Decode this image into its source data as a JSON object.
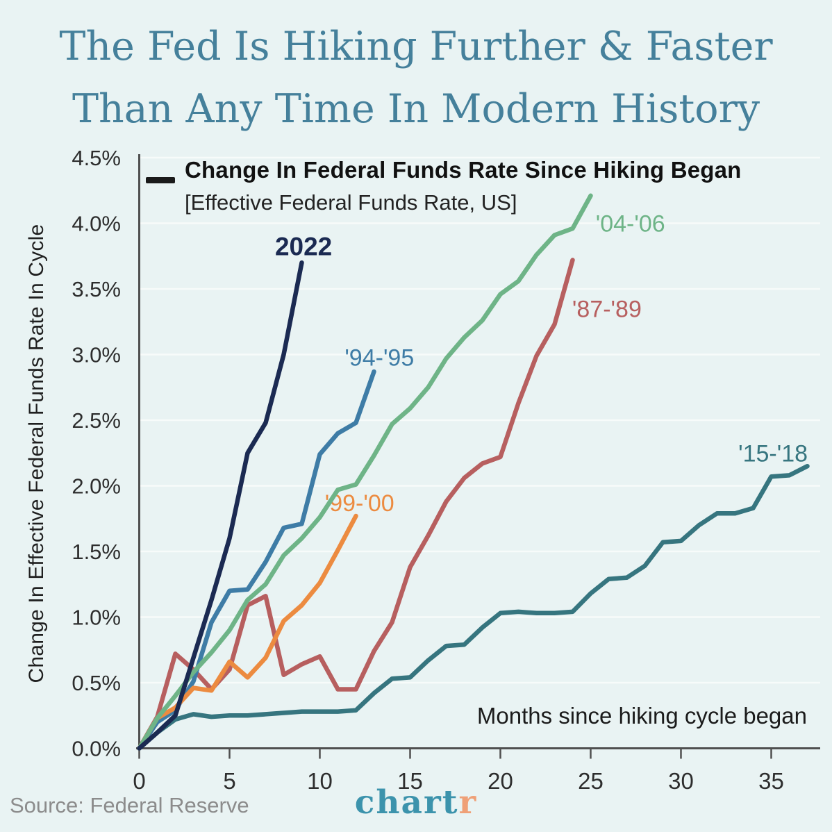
{
  "title": {
    "line1": "The Fed Is Hiking Further & Faster",
    "line2": "Than Any Time In Modern History",
    "color": "#45809b"
  },
  "legend": {
    "swatch_color": "#1a1a1a",
    "label": "Change In Federal Funds Rate Since Hiking Began",
    "sublabel": "[Effective Federal Funds Rate, US]"
  },
  "footer": {
    "source": "Source: Federal Reserve",
    "logo_main": "chart",
    "logo_accent": "r",
    "logo_main_color": "#3c93ac",
    "logo_accent_color": "#efa077",
    "source_color": "#8c8c8c"
  },
  "chart_data": {
    "type": "line",
    "title": "Change In Federal Funds Rate Since Hiking Began",
    "subtitle": "[Effective Federal Funds Rate, US]",
    "xlabel": "Months since hiking cycle began",
    "ylabel": "Change In Effective Federal Funds Rate In Cycle",
    "x_unit": "months since hiking cycle began",
    "y_unit": "percentage points",
    "xlim": [
      0,
      37.7
    ],
    "ylim": [
      0,
      4.5
    ],
    "x_ticks": [
      0,
      5,
      10,
      15,
      20,
      25,
      30,
      35
    ],
    "y_ticks": [
      0,
      0.5,
      1.0,
      1.5,
      2.0,
      2.5,
      3.0,
      3.5,
      4.0,
      4.5
    ],
    "y_tick_labels": [
      "0.0%",
      "0.5%",
      "1.0%",
      "1.5%",
      "2.0%",
      "2.5%",
      "3.0%",
      "3.5%",
      "4.0%",
      "4.5%"
    ],
    "grid": "horizontal",
    "legend_position": "top-left",
    "axis_color": "#4f4f4f",
    "grid_color": "#f7fbfa",
    "tick_label_color": "#2d2d2d",
    "series": [
      {
        "id": "87-89",
        "name": "'87-'89",
        "color": "#b75f5f",
        "label_x": 25.9,
        "label_y": 3.35,
        "label_bold": false,
        "values": [
          0,
          0.24,
          0.72,
          0.6,
          0.45,
          0.6,
          1.09,
          1.16,
          0.56,
          0.64,
          0.7,
          0.45,
          0.45,
          0.74,
          0.96,
          1.38,
          1.62,
          1.88,
          2.06,
          2.17,
          2.22,
          2.63,
          2.99,
          3.23,
          3.72
        ]
      },
      {
        "id": "94-95",
        "name": "'94-'95",
        "color": "#3e7ca6",
        "label_x": 13.3,
        "label_y": 2.98,
        "label_bold": false,
        "values": [
          0,
          0.2,
          0.29,
          0.51,
          0.96,
          1.2,
          1.21,
          1.42,
          1.68,
          1.71,
          2.24,
          2.4,
          2.48,
          2.87
        ]
      },
      {
        "id": "99-00",
        "name": "'99-'00",
        "color": "#ec8b40",
        "label_x": 12.2,
        "label_y": 1.87,
        "label_bold": false,
        "values": [
          0,
          0.23,
          0.31,
          0.46,
          0.44,
          0.66,
          0.54,
          0.69,
          0.97,
          1.09,
          1.26,
          1.51,
          1.77
        ]
      },
      {
        "id": "04-06",
        "name": "'04-'06",
        "color": "#6eb487",
        "label_x": 27.2,
        "label_y": 4.0,
        "label_bold": false,
        "values": [
          0,
          0.23,
          0.4,
          0.58,
          0.73,
          0.9,
          1.13,
          1.25,
          1.47,
          1.6,
          1.76,
          1.97,
          2.01,
          2.23,
          2.47,
          2.59,
          2.75,
          2.97,
          3.13,
          3.26,
          3.46,
          3.56,
          3.76,
          3.91,
          3.96,
          4.21
        ]
      },
      {
        "id": "15-18",
        "name": "'15-'18",
        "color": "#36757f",
        "label_x": 35.1,
        "label_y": 2.25,
        "label_bold": false,
        "values": [
          0,
          0.12,
          0.22,
          0.26,
          0.24,
          0.25,
          0.25,
          0.26,
          0.27,
          0.28,
          0.28,
          0.28,
          0.29,
          0.42,
          0.53,
          0.54,
          0.67,
          0.78,
          0.79,
          0.92,
          1.03,
          1.04,
          1.03,
          1.03,
          1.04,
          1.18,
          1.29,
          1.3,
          1.39,
          1.57,
          1.58,
          1.7,
          1.79,
          1.79,
          1.83,
          2.07,
          2.08,
          2.15
        ]
      },
      {
        "id": "2022",
        "name": "2022",
        "color": "#1b2a52",
        "label_x": 9.1,
        "label_y": 3.82,
        "label_bold": true,
        "values": [
          0,
          0.12,
          0.25,
          0.69,
          1.13,
          1.6,
          2.25,
          2.48,
          3.0,
          3.7
        ]
      }
    ]
  }
}
